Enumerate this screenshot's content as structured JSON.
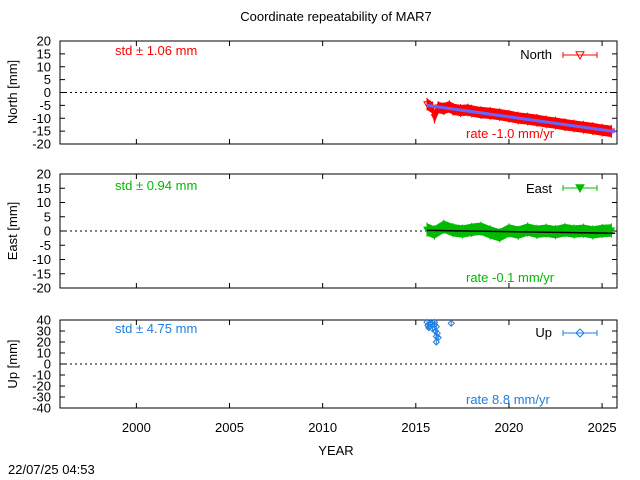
{
  "title": "Coordinate repeatability of MAR7",
  "timestamp": "22/07/25 04:53",
  "colors": {
    "north": "#ff0000",
    "east": "#00bb00",
    "up": "#1e7fe0",
    "trend": "#6666ff",
    "axis": "#000000"
  },
  "chart_data": {
    "type": "scatter",
    "xlabel": "YEAR",
    "xlim": [
      1995.9,
      2025.8
    ],
    "xticks": [
      2000,
      2005,
      2010,
      2015,
      2020,
      2025
    ],
    "xtick_labels": [
      "2000",
      "2005",
      "2010",
      "2015",
      "2020",
      "2025"
    ],
    "panels": [
      {
        "id": "north",
        "ylabel": "North [mm]",
        "ylim": [
          -20,
          20
        ],
        "yticks": [
          -20,
          -15,
          -10,
          -5,
          0,
          5,
          10,
          15,
          20
        ],
        "ytick_labels": [
          "-20",
          "-15",
          "-10",
          "-5",
          "0",
          "5",
          "10",
          "15",
          "20"
        ],
        "legend": "North",
        "marker": "triangle-down-open",
        "std_label": "std ± 1.06 mm",
        "rate_label": "rate -1.0 mm/yr",
        "trend_line": {
          "x": [
            2015.6,
            2025.7
          ],
          "y": [
            -5.0,
            -15.2
          ]
        },
        "series": {
          "x": [
            2015.6,
            2015.9,
            2016.0,
            2016.2,
            2016.5,
            2016.8,
            2017.0,
            2017.4,
            2017.8,
            2018.0,
            2018.5,
            2019.0,
            2019.5,
            2020.0,
            2020.5,
            2021.0,
            2021.5,
            2022.0,
            2022.5,
            2023.0,
            2023.5,
            2024.0,
            2024.5,
            2025.0,
            2025.5
          ],
          "y": [
            -4.5,
            -6.0,
            -9.5,
            -5.8,
            -6.3,
            -5.5,
            -6.5,
            -7.0,
            -6.8,
            -7.2,
            -7.8,
            -8.1,
            -8.6,
            -9.2,
            -9.9,
            -10.3,
            -10.8,
            -11.4,
            -11.9,
            -12.5,
            -13.0,
            -13.5,
            -14.0,
            -14.6,
            -15.1
          ]
        }
      },
      {
        "id": "east",
        "ylabel": "East [mm]",
        "ylim": [
          -20,
          20
        ],
        "yticks": [
          -20,
          -15,
          -10,
          -5,
          0,
          5,
          10,
          15,
          20
        ],
        "ytick_labels": [
          "-20",
          "-15",
          "-10",
          "-5",
          "0",
          "5",
          "10",
          "15",
          "20"
        ],
        "legend": "East",
        "marker": "triangle-down-filled",
        "std_label": "std ± 0.94 mm",
        "rate_label": "rate -0.1 mm/yr",
        "trend_line": {
          "x": [
            2015.6,
            2025.7
          ],
          "y": [
            0.2,
            -0.8
          ]
        },
        "series": {
          "x": [
            2015.6,
            2016.0,
            2016.5,
            2017.0,
            2017.5,
            2018.0,
            2018.5,
            2019.0,
            2019.5,
            2020.0,
            2020.5,
            2021.0,
            2021.5,
            2022.0,
            2022.5,
            2023.0,
            2023.5,
            2024.0,
            2024.5,
            2025.0,
            2025.5
          ],
          "y": [
            0.5,
            -0.5,
            1.5,
            0.3,
            -0.2,
            0.4,
            0.8,
            -0.5,
            -1.5,
            0.2,
            -0.6,
            0.5,
            -0.3,
            0.1,
            -0.4,
            0.3,
            -0.2,
            0.1,
            -0.5,
            0.0,
            0.2
          ]
        }
      },
      {
        "id": "up",
        "ylabel": "Up [mm]",
        "ylim": [
          -40,
          40
        ],
        "yticks": [
          -40,
          -30,
          -20,
          -10,
          0,
          10,
          20,
          30,
          40
        ],
        "ytick_labels": [
          "-40",
          "-30",
          "-20",
          "-10",
          "0",
          "10",
          "20",
          "30",
          "40"
        ],
        "legend": "Up",
        "marker": "diamond-open",
        "std_label": "std ± 4.75 mm",
        "rate_label": "rate  8.8 mm/yr",
        "series": {
          "x": [
            2015.6,
            2015.65,
            2015.7,
            2015.8,
            2015.9,
            2016.0,
            2016.05,
            2016.1,
            2016.1,
            2016.15,
            2016.2,
            2016.0,
            2016.1,
            2016.9
          ],
          "y": [
            38,
            35,
            33,
            37,
            32,
            36,
            30,
            25,
            20,
            28,
            24,
            38,
            34,
            37
          ]
        }
      }
    ]
  }
}
